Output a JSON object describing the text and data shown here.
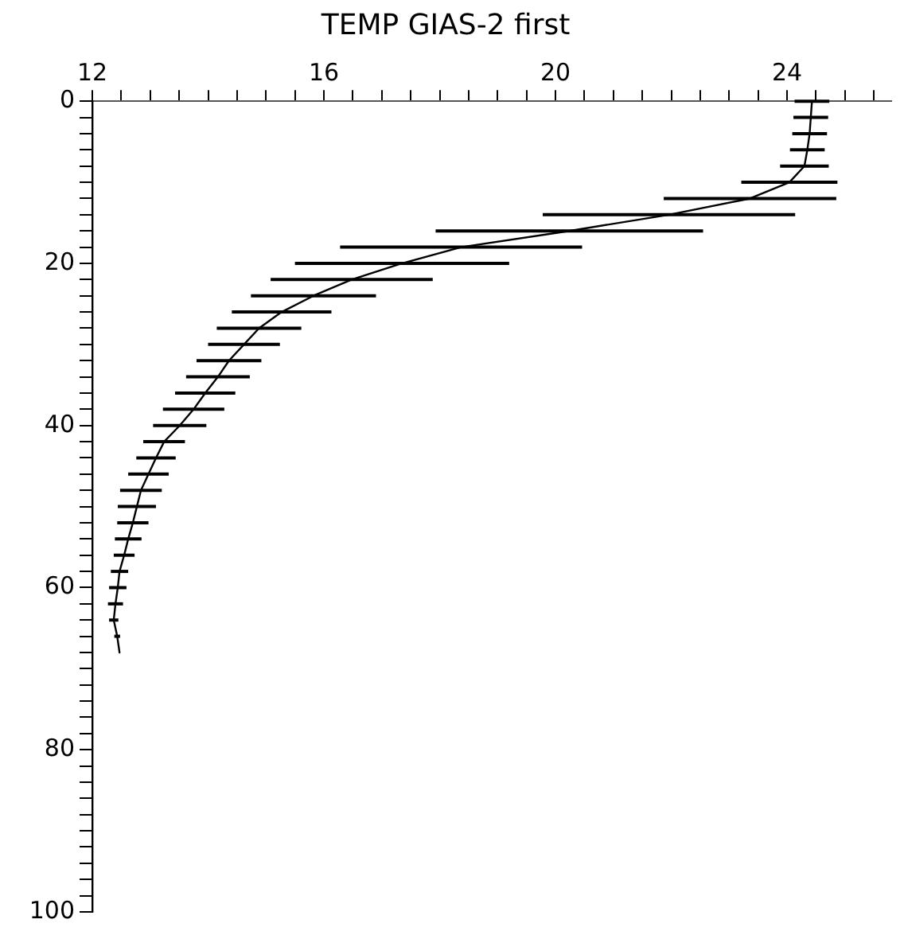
{
  "chart_data": {
    "type": "line",
    "title": "TEMP GIAS-2 first",
    "marker": "none",
    "line_style": "solid",
    "legend": false,
    "grid": false,
    "xlim": [
      12,
      25.8
    ],
    "ylim": [
      100,
      0
    ],
    "xticks": [
      12,
      {
        "value": 12.5,
        "label": null
      },
      {
        "value": 13,
        "label": null
      },
      {
        "value": 13.5,
        "label": null
      },
      {
        "value": 14,
        "label": null
      },
      {
        "value": 14.5,
        "label": null
      },
      {
        "value": 15,
        "label": null
      },
      {
        "value": 15.5,
        "label": null
      },
      16,
      {
        "value": 16.5,
        "label": null
      },
      {
        "value": 17,
        "label": null
      },
      {
        "value": 17.5,
        "label": null
      },
      {
        "value": 18,
        "label": null
      },
      {
        "value": 18.5,
        "label": null
      },
      {
        "value": 19,
        "label": null
      },
      {
        "value": 19.5,
        "label": null
      },
      20,
      {
        "value": 20.5,
        "label": null
      },
      {
        "value": 21,
        "label": null
      },
      {
        "value": 21.5,
        "label": null
      },
      {
        "value": 22,
        "label": null
      },
      {
        "value": 22.5,
        "label": null
      },
      {
        "value": 23,
        "label": null
      },
      {
        "value": 23.5,
        "label": null
      },
      24,
      {
        "value": 24.5,
        "label": null
      },
      {
        "value": 25,
        "label": null
      },
      {
        "value": 25.5,
        "label": null
      }
    ],
    "yticks": [
      0,
      {
        "value": 2,
        "label": null
      },
      {
        "value": 4,
        "label": null
      },
      {
        "value": 6,
        "label": null
      },
      {
        "value": 8,
        "label": null
      },
      {
        "value": 10,
        "label": null
      },
      {
        "value": 12,
        "label": null
      },
      {
        "value": 14,
        "label": null
      },
      {
        "value": 16,
        "label": null
      },
      {
        "value": 18,
        "label": null
      },
      20,
      {
        "value": 22,
        "label": null
      },
      {
        "value": 24,
        "label": null
      },
      {
        "value": 26,
        "label": null
      },
      {
        "value": 28,
        "label": null
      },
      {
        "value": 30,
        "label": null
      },
      {
        "value": 32,
        "label": null
      },
      {
        "value": 34,
        "label": null
      },
      {
        "value": 36,
        "label": null
      },
      {
        "value": 38,
        "label": null
      },
      40,
      {
        "value": 42,
        "label": null
      },
      {
        "value": 44,
        "label": null
      },
      {
        "value": 46,
        "label": null
      },
      {
        "value": 48,
        "label": null
      },
      {
        "value": 50,
        "label": null
      },
      {
        "value": 52,
        "label": null
      },
      {
        "value": 54,
        "label": null
      },
      {
        "value": 56,
        "label": null
      },
      {
        "value": 58,
        "label": null
      },
      60,
      {
        "value": 62,
        "label": null
      },
      {
        "value": 64,
        "label": null
      },
      {
        "value": 66,
        "label": null
      },
      {
        "value": 68,
        "label": null
      },
      {
        "value": 70,
        "label": null
      },
      {
        "value": 72,
        "label": null
      },
      {
        "value": 74,
        "label": null
      },
      {
        "value": 76,
        "label": null
      },
      {
        "value": 78,
        "label": null
      },
      80,
      {
        "value": 82,
        "label": null
      },
      {
        "value": 84,
        "label": null
      },
      {
        "value": 86,
        "label": null
      },
      {
        "value": 88,
        "label": null
      },
      {
        "value": 90,
        "label": null
      },
      {
        "value": 92,
        "label": null
      },
      {
        "value": 94,
        "label": null
      },
      {
        "value": 96,
        "label": null
      },
      {
        "value": 98,
        "label": null
      },
      100
    ],
    "series": [
      {
        "color": "#000000",
        "x": [
          24.43,
          24.41,
          24.39,
          24.35,
          24.3,
          24.04,
          23.36,
          21.96,
          20.24,
          18.37,
          17.35,
          16.48,
          15.82,
          15.27,
          14.88,
          14.62,
          14.36,
          14.17,
          13.95,
          13.75,
          13.51,
          13.24,
          13.1,
          12.97,
          12.84,
          12.77,
          12.7,
          12.62,
          12.55,
          12.47,
          12.44,
          12.4,
          12.37,
          12.43,
          12.47
        ],
        "values": [
          0,
          2,
          4,
          6,
          8,
          10,
          12,
          14,
          16,
          18,
          20,
          22,
          24,
          26,
          28,
          30,
          32,
          34,
          36,
          38,
          40,
          42,
          44,
          46,
          48,
          50,
          52,
          54,
          56,
          58,
          60,
          62,
          64,
          66,
          68
        ],
        "xerrors": [
          0.3,
          0.3,
          0.3,
          0.3,
          0.42,
          0.83,
          1.49,
          2.18,
          2.31,
          2.09,
          1.85,
          1.4,
          1.08,
          0.86,
          0.73,
          0.62,
          0.56,
          0.55,
          0.52,
          0.53,
          0.46,
          0.36,
          0.34,
          0.35,
          0.36,
          0.33,
          0.27,
          0.23,
          0.18,
          0.15,
          0.15,
          0.13,
          0.08,
          0.05,
          null
        ]
      }
    ]
  }
}
